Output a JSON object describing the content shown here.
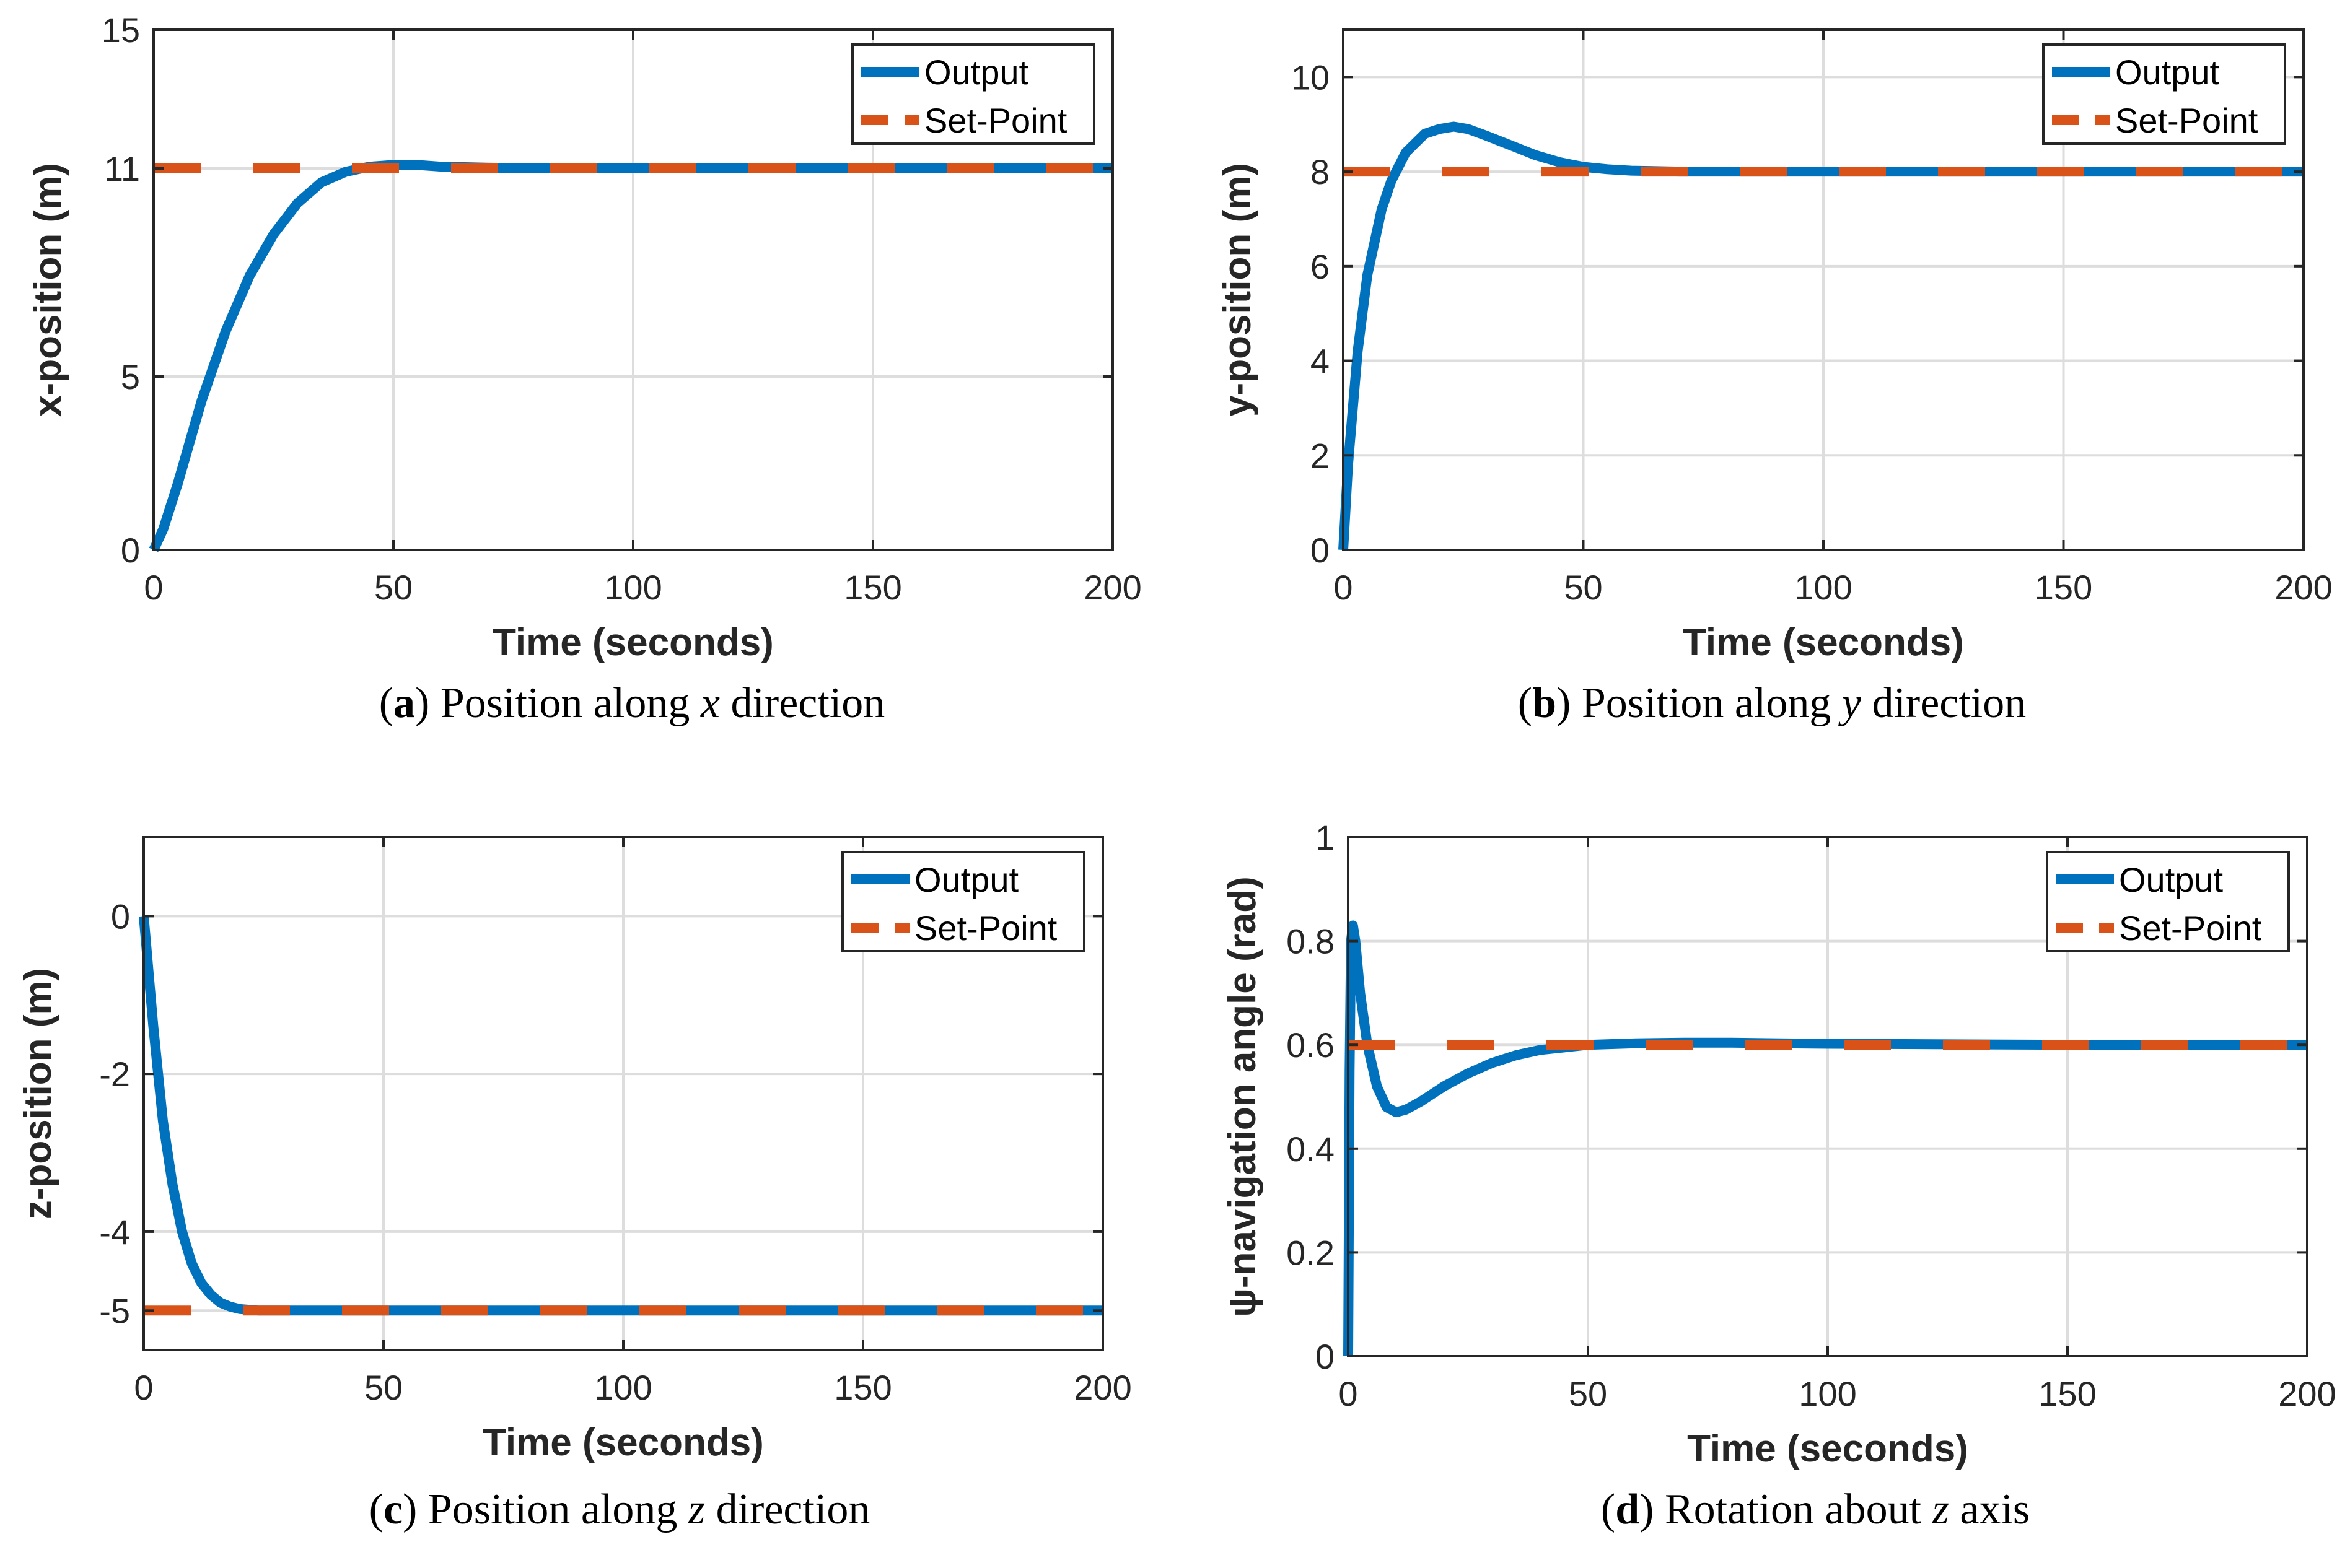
{
  "chart_data": [
    {
      "type": "line",
      "panel": "a",
      "caption_letter": "a",
      "caption_prefix": "Position along ",
      "caption_var": "x",
      "caption_suffix": " direction",
      "xlabel": "Time (seconds)",
      "ylabel": "x-position (m)",
      "xlim": [
        0,
        200
      ],
      "ylim": [
        0,
        15
      ],
      "xticks": [
        0,
        50,
        100,
        150,
        200
      ],
      "yticks": [
        0,
        5,
        11,
        15
      ],
      "grid": true,
      "legend_position": "top-right",
      "series": [
        {
          "name": "Output",
          "style": "solid",
          "x": [
            0,
            2,
            5,
            10,
            15,
            20,
            25,
            30,
            35,
            40,
            45,
            50,
            55,
            60,
            70,
            80,
            100,
            150,
            200
          ],
          "values": [
            0,
            0.6,
            1.9,
            4.3,
            6.3,
            7.9,
            9.1,
            10.0,
            10.6,
            10.9,
            11.05,
            11.1,
            11.1,
            11.05,
            11.02,
            11.0,
            11.0,
            11.0,
            11.0
          ]
        },
        {
          "name": "Set-Point",
          "style": "dashed",
          "x": [
            0,
            200
          ],
          "values": [
            11,
            11
          ]
        }
      ]
    },
    {
      "type": "line",
      "panel": "b",
      "caption_letter": "b",
      "caption_prefix": "Position along ",
      "caption_var": "y",
      "caption_suffix": " direction",
      "xlabel": "Time (seconds)",
      "ylabel": "y-position (m)",
      "xlim": [
        0,
        200
      ],
      "ylim": [
        0,
        11
      ],
      "xticks": [
        0,
        50,
        100,
        150,
        200
      ],
      "yticks": [
        0,
        2,
        4,
        6,
        8,
        10
      ],
      "grid": true,
      "legend_position": "top-right",
      "series": [
        {
          "name": "Output",
          "style": "solid",
          "x": [
            0,
            1,
            3,
            5,
            8,
            10,
            13,
            17,
            20,
            23,
            26,
            30,
            35,
            40,
            45,
            50,
            55,
            60,
            70,
            80,
            100,
            150,
            200
          ],
          "values": [
            0,
            1.8,
            4.2,
            5.8,
            7.2,
            7.8,
            8.4,
            8.8,
            8.9,
            8.95,
            8.9,
            8.75,
            8.55,
            8.35,
            8.2,
            8.1,
            8.05,
            8.02,
            8.0,
            8.0,
            8.0,
            8.0,
            8.0
          ]
        },
        {
          "name": "Set-Point",
          "style": "dashed",
          "x": [
            0,
            200
          ],
          "values": [
            8,
            8
          ]
        }
      ]
    },
    {
      "type": "line",
      "panel": "c",
      "caption_letter": "c",
      "caption_prefix": "Position along ",
      "caption_var": "z",
      "caption_suffix": " direction",
      "xlabel": "Time (seconds)",
      "ylabel": "z-position (m)",
      "xlim": [
        0,
        200
      ],
      "ylim": [
        -5.5,
        1
      ],
      "xticks": [
        0,
        50,
        100,
        150,
        200
      ],
      "yticks": [
        -5,
        -4,
        -2,
        0
      ],
      "grid": true,
      "legend_position": "top-right",
      "series": [
        {
          "name": "Output",
          "style": "solid",
          "x": [
            0,
            1,
            2,
            3,
            4,
            6,
            8,
            10,
            12,
            14,
            16,
            18,
            20,
            24,
            30,
            50,
            100,
            150,
            200
          ],
          "values": [
            0,
            -0.7,
            -1.4,
            -2.0,
            -2.6,
            -3.4,
            -4.0,
            -4.4,
            -4.65,
            -4.8,
            -4.9,
            -4.95,
            -4.98,
            -5.0,
            -5.0,
            -5.0,
            -5.0,
            -5.0,
            -5.0
          ]
        },
        {
          "name": "Set-Point",
          "style": "dashed",
          "x": [
            0,
            200
          ],
          "values": [
            -5,
            -5
          ]
        }
      ]
    },
    {
      "type": "line",
      "panel": "d",
      "caption_letter": "d",
      "caption_prefix": "Rotation about ",
      "caption_var": "z",
      "caption_suffix": " axis",
      "xlabel": "Time (seconds)",
      "ylabel": "ψ-navigation angle (rad)",
      "xlim": [
        0,
        200
      ],
      "ylim": [
        0,
        1
      ],
      "xticks": [
        0,
        50,
        100,
        150,
        200
      ],
      "yticks": [
        0,
        0.2,
        0.4,
        0.6,
        0.8,
        1
      ],
      "grid": true,
      "legend_position": "top-right",
      "series": [
        {
          "name": "Output",
          "style": "solid",
          "x": [
            0,
            0.3,
            0.6,
            1.0,
            1.5,
            2.5,
            4,
            6,
            8,
            10,
            12,
            15,
            20,
            25,
            30,
            35,
            40,
            45,
            50,
            60,
            70,
            80,
            90,
            100,
            150,
            200
          ],
          "values": [
            0,
            0.55,
            0.8,
            0.83,
            0.8,
            0.7,
            0.6,
            0.52,
            0.48,
            0.47,
            0.475,
            0.49,
            0.52,
            0.545,
            0.565,
            0.58,
            0.59,
            0.595,
            0.6,
            0.603,
            0.604,
            0.604,
            0.603,
            0.602,
            0.6,
            0.6
          ]
        },
        {
          "name": "Set-Point",
          "style": "dashed",
          "x": [
            0,
            200
          ],
          "values": [
            0.6,
            0.6
          ]
        }
      ]
    }
  ],
  "colors": {
    "output": "#0072BD",
    "setpoint": "#D95319",
    "grid": "#DDDDDD",
    "axis": "#262626"
  }
}
